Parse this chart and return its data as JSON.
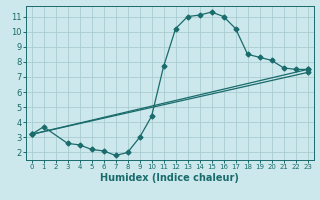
{
  "xlabel": "Humidex (Indice chaleur)",
  "bg_color": "#cce8ec",
  "grid_color": "#aacdd2",
  "line_color": "#1a6b6b",
  "spine_color": "#1a6b6b",
  "xlim": [
    -0.5,
    23.5
  ],
  "ylim": [
    1.5,
    11.7
  ],
  "xticks": [
    0,
    1,
    2,
    3,
    4,
    5,
    6,
    7,
    8,
    9,
    10,
    11,
    12,
    13,
    14,
    15,
    16,
    17,
    18,
    19,
    20,
    21,
    22,
    23
  ],
  "yticks": [
    2,
    3,
    4,
    5,
    6,
    7,
    8,
    9,
    10,
    11
  ],
  "curve1_x": [
    0,
    1,
    3,
    4,
    5,
    6,
    7,
    8,
    9,
    10,
    11,
    12,
    13,
    14,
    15,
    16,
    17,
    18,
    19,
    20,
    21,
    22,
    23
  ],
  "curve1_y": [
    3.2,
    3.7,
    2.6,
    2.5,
    2.2,
    2.1,
    1.8,
    2.0,
    3.0,
    4.4,
    7.7,
    10.2,
    11.0,
    11.1,
    11.3,
    11.0,
    10.2,
    8.5,
    8.3,
    8.1,
    7.6,
    7.5,
    7.5
  ],
  "curve2_x": [
    0,
    23
  ],
  "curve2_y": [
    3.2,
    7.5
  ],
  "curve3_x": [
    0,
    23
  ],
  "curve3_y": [
    3.2,
    7.3
  ],
  "xlabel_fontsize": 7,
  "xtick_fontsize": 5,
  "ytick_fontsize": 6,
  "linewidth": 0.9,
  "markersize": 2.5
}
